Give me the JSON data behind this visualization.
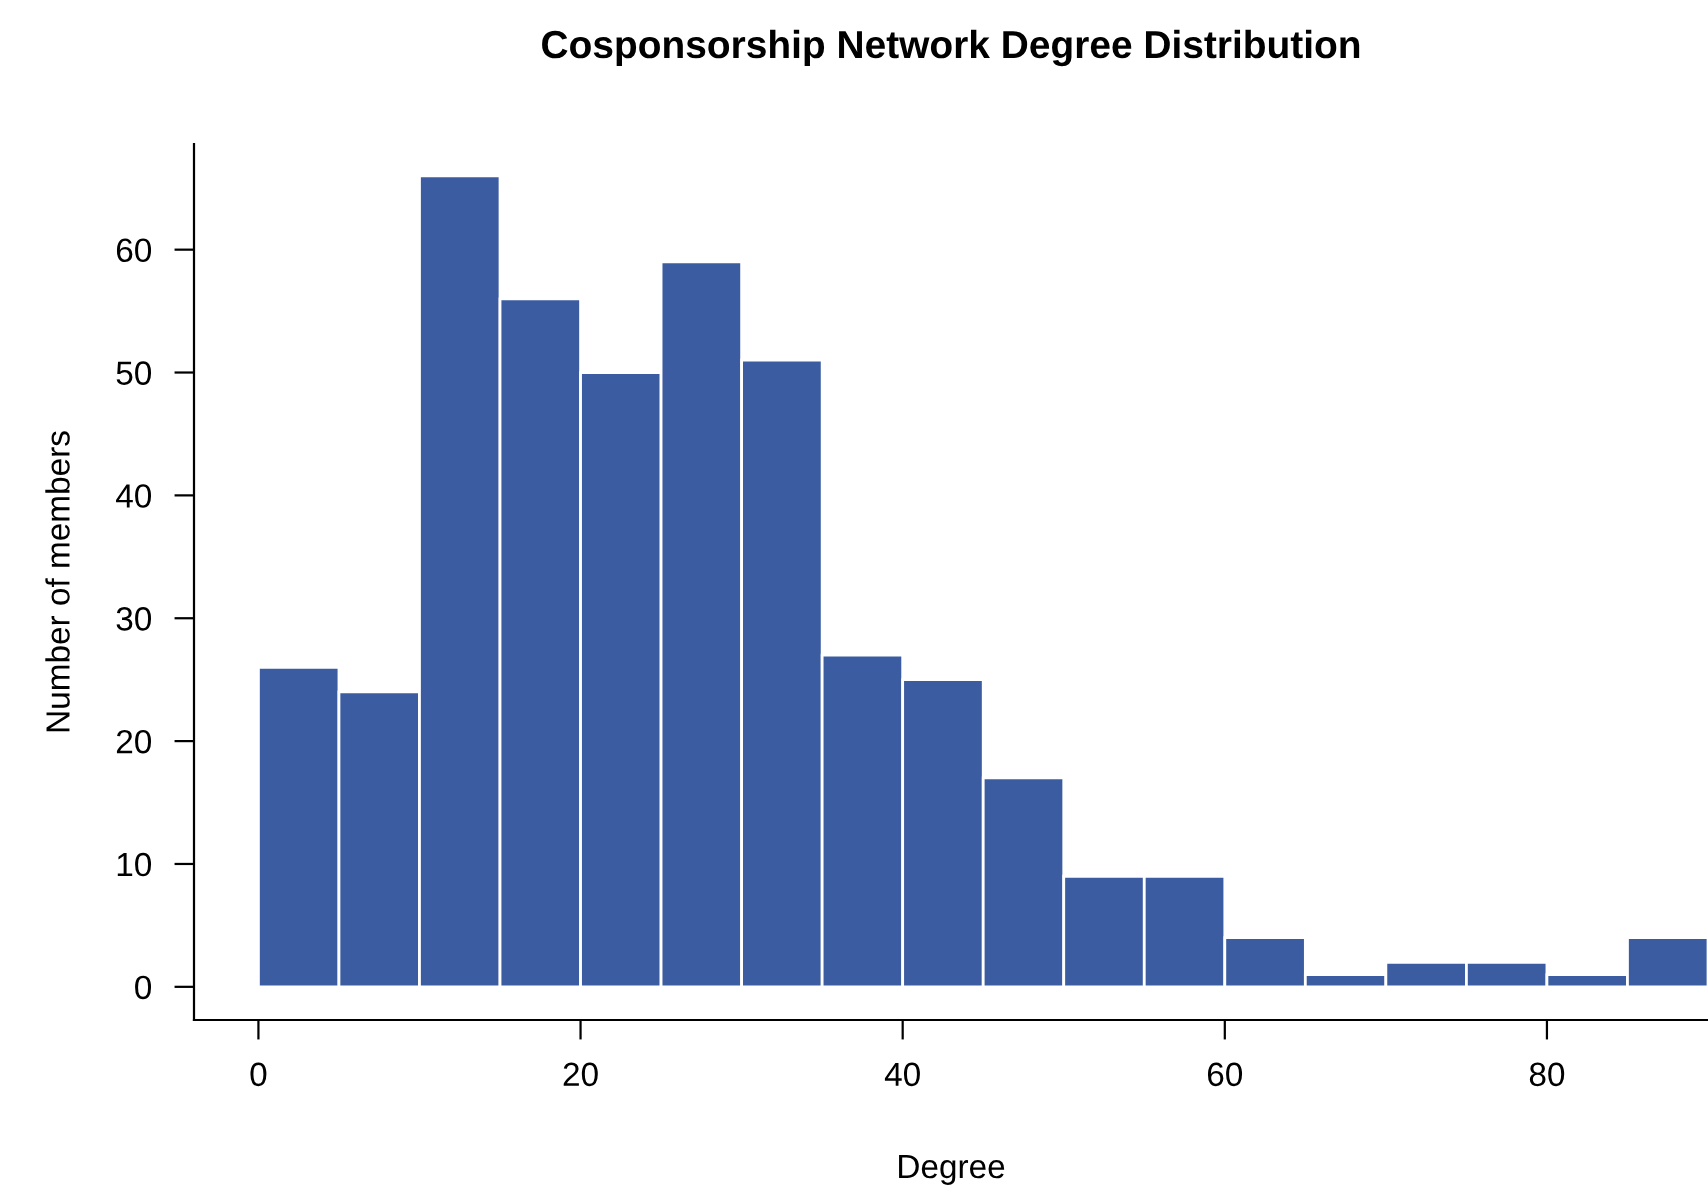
{
  "chart_data": {
    "type": "histogram",
    "title": "Cosponsorship Network Degree Distribution",
    "xlabel": "Degree",
    "ylabel": "Number of members",
    "bins": [
      0,
      5,
      10,
      15,
      20,
      25,
      30,
      35,
      40,
      45,
      50,
      55,
      60,
      65,
      70,
      75,
      80,
      85,
      90
    ],
    "values": [
      26,
      24,
      66,
      56,
      50,
      59,
      51,
      27,
      25,
      17,
      9,
      9,
      4,
      1,
      2,
      2,
      1,
      4
    ],
    "color": "#3b5ca0",
    "xlim": [
      -4,
      90
    ],
    "ylim": [
      -2.7,
      68.6
    ],
    "xticks": [
      0,
      20,
      40,
      60,
      80
    ],
    "yticks": [
      0,
      10,
      20,
      30,
      40,
      50,
      60
    ],
    "grid": false
  }
}
